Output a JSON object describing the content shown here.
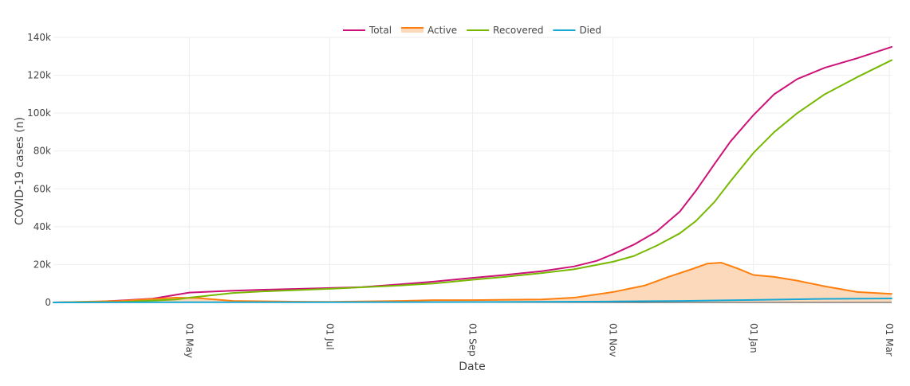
{
  "chart_data": {
    "type": "line",
    "xlabel": "Date",
    "ylabel": "COVID-19 cases (n)",
    "x_range": [
      "2020-03-03",
      "2021-03-02"
    ],
    "ylim": [
      0,
      140000
    ],
    "y_ticks": [
      0,
      20000,
      40000,
      60000,
      80000,
      100000,
      120000,
      140000
    ],
    "y_tick_labels": [
      "0",
      "20k",
      "40k",
      "60k",
      "80k",
      "100k",
      "120k",
      "140k"
    ],
    "x_ticks": [
      "2020-05-01",
      "2020-07-01",
      "2020-09-01",
      "2020-11-01",
      "2021-01-01",
      "2021-03-01"
    ],
    "x_tick_labels": [
      "01 May",
      "01 Jul",
      "01 Sep",
      "01 Nov",
      "01 Jan",
      "01 Mar"
    ],
    "grid": true,
    "legend": "top-center",
    "series": [
      {
        "name": "Total",
        "color": "#cc1177",
        "fill": false,
        "points": [
          [
            "2020-03-03",
            0
          ],
          [
            "2020-03-20",
            300
          ],
          [
            "2020-04-01",
            1000
          ],
          [
            "2020-04-15",
            2000
          ],
          [
            "2020-04-25",
            4000
          ],
          [
            "2020-05-01",
            5200
          ],
          [
            "2020-05-20",
            6200
          ],
          [
            "2020-06-01",
            6700
          ],
          [
            "2020-07-01",
            7600
          ],
          [
            "2020-07-15",
            8100
          ],
          [
            "2020-08-01",
            9600
          ],
          [
            "2020-08-15",
            11000
          ],
          [
            "2020-09-01",
            13000
          ],
          [
            "2020-09-15",
            14500
          ],
          [
            "2020-10-01",
            16500
          ],
          [
            "2020-10-15",
            19000
          ],
          [
            "2020-10-25",
            22000
          ],
          [
            "2020-11-01",
            25500
          ],
          [
            "2020-11-10",
            30500
          ],
          [
            "2020-11-20",
            37500
          ],
          [
            "2020-11-30",
            48000
          ],
          [
            "2020-12-07",
            59000
          ],
          [
            "2020-12-15",
            73000
          ],
          [
            "2020-12-22",
            85000
          ],
          [
            "2021-01-01",
            99000
          ],
          [
            "2021-01-10",
            110000
          ],
          [
            "2021-01-20",
            118000
          ],
          [
            "2021-02-01",
            124000
          ],
          [
            "2021-02-15",
            129000
          ],
          [
            "2021-03-02",
            135000
          ]
        ]
      },
      {
        "name": "Active",
        "color": "#ff7f0e",
        "fill": true,
        "fill_color": "#fdd9bb",
        "points": [
          [
            "2020-03-03",
            0
          ],
          [
            "2020-04-01",
            800
          ],
          [
            "2020-04-25",
            2500
          ],
          [
            "2020-05-05",
            2300
          ],
          [
            "2020-05-20",
            800
          ],
          [
            "2020-06-15",
            400
          ],
          [
            "2020-07-01",
            300
          ],
          [
            "2020-08-01",
            800
          ],
          [
            "2020-08-15",
            1200
          ],
          [
            "2020-09-01",
            1200
          ],
          [
            "2020-10-01",
            1600
          ],
          [
            "2020-10-15",
            2500
          ],
          [
            "2020-11-01",
            5500
          ],
          [
            "2020-11-15",
            9000
          ],
          [
            "2020-11-25",
            13500
          ],
          [
            "2020-12-05",
            17500
          ],
          [
            "2020-12-12",
            20500
          ],
          [
            "2020-12-18",
            21000
          ],
          [
            "2020-12-25",
            18000
          ],
          [
            "2021-01-01",
            14500
          ],
          [
            "2021-01-10",
            13500
          ],
          [
            "2021-01-20",
            11500
          ],
          [
            "2021-02-01",
            8500
          ],
          [
            "2021-02-15",
            5500
          ],
          [
            "2021-03-02",
            4500
          ]
        ]
      },
      {
        "name": "Recovered",
        "color": "#77b800",
        "fill": false,
        "points": [
          [
            "2020-03-03",
            0
          ],
          [
            "2020-04-01",
            200
          ],
          [
            "2020-04-25",
            1500
          ],
          [
            "2020-05-01",
            2500
          ],
          [
            "2020-05-20",
            5000
          ],
          [
            "2020-06-01",
            5800
          ],
          [
            "2020-07-01",
            7200
          ],
          [
            "2020-08-01",
            9000
          ],
          [
            "2020-08-15",
            10000
          ],
          [
            "2020-09-01",
            12000
          ],
          [
            "2020-09-15",
            13500
          ],
          [
            "2020-10-01",
            15500
          ],
          [
            "2020-10-15",
            17500
          ],
          [
            "2020-11-01",
            21500
          ],
          [
            "2020-11-10",
            24500
          ],
          [
            "2020-11-20",
            30000
          ],
          [
            "2020-11-30",
            36500
          ],
          [
            "2020-12-07",
            43000
          ],
          [
            "2020-12-15",
            53000
          ],
          [
            "2020-12-22",
            64000
          ],
          [
            "2021-01-01",
            79000
          ],
          [
            "2021-01-10",
            90000
          ],
          [
            "2021-01-20",
            100000
          ],
          [
            "2021-02-01",
            110000
          ],
          [
            "2021-02-15",
            119000
          ],
          [
            "2021-03-02",
            128000
          ]
        ]
      },
      {
        "name": "Died",
        "color": "#17a9d6",
        "fill": false,
        "points": [
          [
            "2020-03-03",
            0
          ],
          [
            "2020-05-01",
            80
          ],
          [
            "2020-09-01",
            200
          ],
          [
            "2020-11-01",
            500
          ],
          [
            "2020-12-01",
            800
          ],
          [
            "2021-01-01",
            1300
          ],
          [
            "2021-02-01",
            1900
          ],
          [
            "2021-03-02",
            2100
          ]
        ]
      }
    ]
  }
}
